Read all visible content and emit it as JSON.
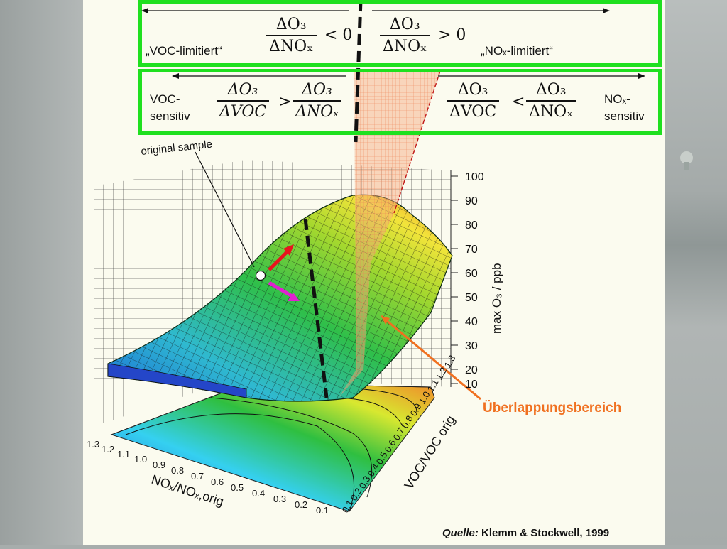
{
  "top_box": {
    "left_label": "„VOC-limitiert“",
    "frac1": {
      "num": "ΔO₃",
      "den": "ΔNOₓ"
    },
    "rel1": "< 0",
    "frac2": {
      "num": "ΔO₃",
      "den": "ΔNOₓ"
    },
    "rel2": "> 0",
    "right_label": "„NOₓ-limitiert“"
  },
  "second_box": {
    "left_label_1": "VOC-",
    "left_label_2": "sensitiv",
    "frac_a": {
      "num": "ΔO₃",
      "den": "ΔVOC"
    },
    "rel_a": ">",
    "frac_b": {
      "num": "ΔO₃",
      "den": "ΔNOₓ"
    },
    "frac_c": {
      "num": "ΔO₃",
      "den": "ΔVOC"
    },
    "rel_b": "<",
    "frac_d": {
      "num": "ΔO₃",
      "den": "ΔNOₓ"
    },
    "right_label_1": "NOₓ-",
    "right_label_2": "sensitiv"
  },
  "annotations": {
    "original_sample": "original sample",
    "overlap": "Überlappungsbereich"
  },
  "axes": {
    "z_label": "max O₃ / ppb",
    "z_ticks": [
      "100",
      "90",
      "80",
      "70",
      "60",
      "50",
      "40",
      "30",
      "20",
      "10"
    ],
    "x_label": "NOₓ/NOₓ,orig",
    "x_ticks": [
      "1.3",
      "1.2",
      "1.1",
      "1.0",
      "0.9",
      "0.8",
      "0.7",
      "0.6",
      "0.5",
      "0.4",
      "0.3",
      "0.2",
      "0.1"
    ],
    "y_label": "VOC/VOC orig",
    "y_ticks": [
      "0.1",
      "0.2",
      "0.3",
      "0.4",
      "0.5",
      "0.6",
      "0.7",
      "0.8",
      "0.9",
      "1.0",
      "1.1",
      "1.2",
      "1.3"
    ]
  },
  "source": {
    "prefix": "Quelle:",
    "text": "Klemm & Stockwell, 1999"
  },
  "colors": {
    "box_border": "#1fe01f",
    "overlap_label": "#f07020",
    "arrow_red": "#e8141e",
    "arrow_magenta": "#e020d0",
    "shade": "#f4a77c"
  }
}
